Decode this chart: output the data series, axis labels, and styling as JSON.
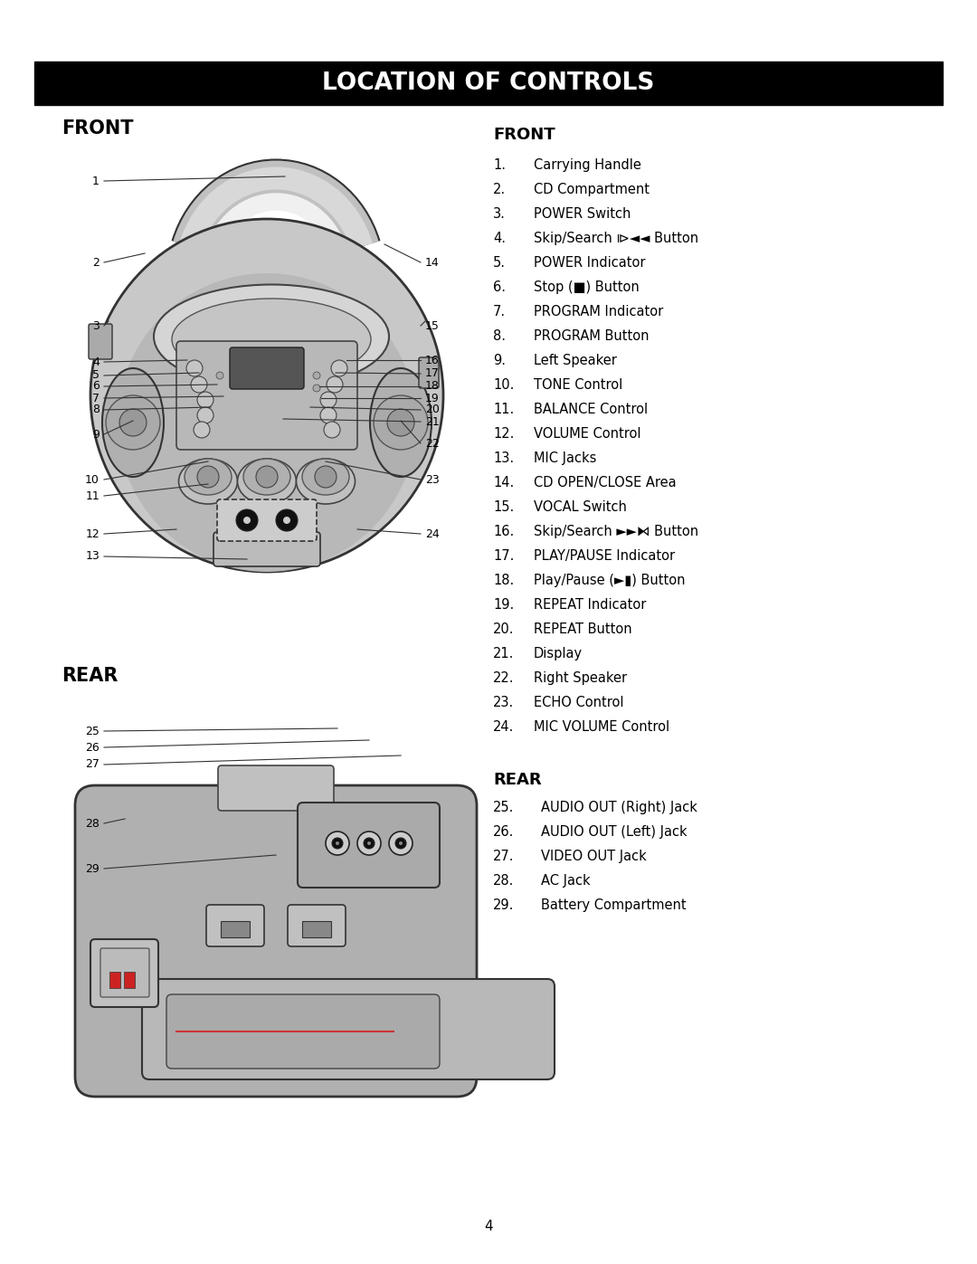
{
  "title": "LOCATION OF CONTROLS",
  "title_bg": "#000000",
  "title_color": "#ffffff",
  "front_label": "FRONT",
  "rear_label": "REAR",
  "front_list_title": "FRONT",
  "rear_list_title": "REAR",
  "front_items": [
    [
      "1.",
      "Carrying Handle"
    ],
    [
      "2.",
      "CD Compartment"
    ],
    [
      "3.",
      "POWER Switch"
    ],
    [
      "4.",
      "Skip/Search ⧐◄◄ Button"
    ],
    [
      "5.",
      "POWER Indicator"
    ],
    [
      "6.",
      "Stop (■) Button"
    ],
    [
      "7.",
      "PROGRAM Indicator"
    ],
    [
      "8.",
      "PROGRAM Button"
    ],
    [
      "9.",
      "Left Speaker"
    ],
    [
      "10.",
      "TONE Control"
    ],
    [
      "11.",
      "BALANCE Control"
    ],
    [
      "12.",
      "VOLUME Control"
    ],
    [
      "13.",
      "MIC Jacks"
    ],
    [
      "14.",
      "CD OPEN/CLOSE Area"
    ],
    [
      "15.",
      "VOCAL Switch"
    ],
    [
      "16.",
      "Skip/Search ►►⧑ Button"
    ],
    [
      "17.",
      "PLAY/PAUSE Indicator"
    ],
    [
      "18.",
      "Play/Pause (►▮) Button"
    ],
    [
      "19.",
      "REPEAT Indicator"
    ],
    [
      "20.",
      "REPEAT Button"
    ],
    [
      "21.",
      "Display"
    ],
    [
      "22.",
      "Right Speaker"
    ],
    [
      "23.",
      "ECHO Control"
    ],
    [
      "24.",
      "MIC VOLUME Control"
    ]
  ],
  "rear_items": [
    [
      "25.",
      "AUDIO OUT (Right) Jack"
    ],
    [
      "26.",
      "AUDIO OUT (Left) Jack"
    ],
    [
      "27.",
      "VIDEO OUT Jack"
    ],
    [
      "28.",
      "AC Jack"
    ],
    [
      "29.",
      "Battery Compartment"
    ]
  ],
  "page_number": "4",
  "bg_color": "#ffffff",
  "body_light": "#cccccc",
  "body_mid": "#aaaaaa",
  "body_dark": "#888888",
  "body_darker": "#666666",
  "outline": "#333333"
}
